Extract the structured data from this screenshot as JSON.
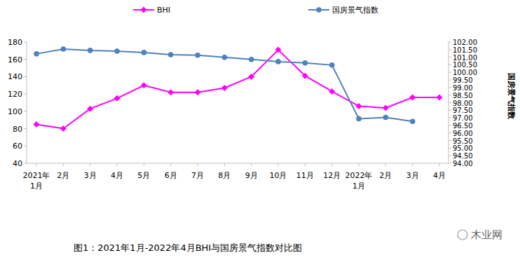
{
  "chart_data": {
    "type": "line",
    "title": "图1：2021年1月-2022年4月BHI与国房景气指数对比图",
    "y2_label": "国房景气指数",
    "annotations": [
      "木业网"
    ],
    "categories": [
      "2021年\n1月",
      "2月",
      "3月",
      "4月",
      "5月",
      "6月",
      "7月",
      "8月",
      "9月",
      "10月",
      "11月",
      "12月",
      "2022年\n1月",
      "2月",
      "3月",
      "4月"
    ],
    "series": [
      {
        "name": "BHI",
        "color": "#ff00ff",
        "marker": "diamond",
        "values": [
          85,
          80,
          103,
          115,
          130,
          122,
          122,
          127,
          140,
          171,
          141,
          123,
          106,
          104,
          116,
          116
        ]
      },
      {
        "name": "国房景气指数",
        "color": "#4f81bd",
        "marker": "circle",
        "axis": "y2",
        "values": [
          101.22,
          101.54,
          101.45,
          101.4,
          101.31,
          101.17,
          101.13,
          100.99,
          100.85,
          100.71,
          100.62,
          100.48,
          96.94,
          97.03,
          96.76,
          null
        ]
      }
    ],
    "ylim": [
      40,
      180
    ],
    "yticks": [
      40,
      60,
      80,
      100,
      120,
      140,
      160,
      180
    ],
    "y2lim": [
      94,
      102
    ],
    "y2ticks": [
      {
        "value": 94,
        "label": "94.00"
      },
      {
        "value": 94.5,
        "label": "94.50"
      },
      {
        "value": 95,
        "label": "95.00"
      },
      {
        "value": 95.5,
        "label": "95.50"
      },
      {
        "value": 96,
        "label": "96.00"
      },
      {
        "value": 96.5,
        "label": "96.50"
      },
      {
        "value": 97,
        "label": "97.00"
      },
      {
        "value": 97.5,
        "label": "97.50"
      },
      {
        "value": 98,
        "label": "98.00"
      },
      {
        "value": 98.5,
        "label": "98.50"
      },
      {
        "value": 99,
        "label": "99.00"
      },
      {
        "value": 99.5,
        "label": "99.50"
      },
      {
        "value": 100,
        "label": "100.00"
      },
      {
        "value": 100.5,
        "label": "100.50"
      },
      {
        "value": 101,
        "label": "101.00"
      },
      {
        "value": 101.5,
        "label": "101.50"
      },
      {
        "value": 102,
        "label": "102.00"
      }
    ],
    "grid": false,
    "legend": "top"
  }
}
